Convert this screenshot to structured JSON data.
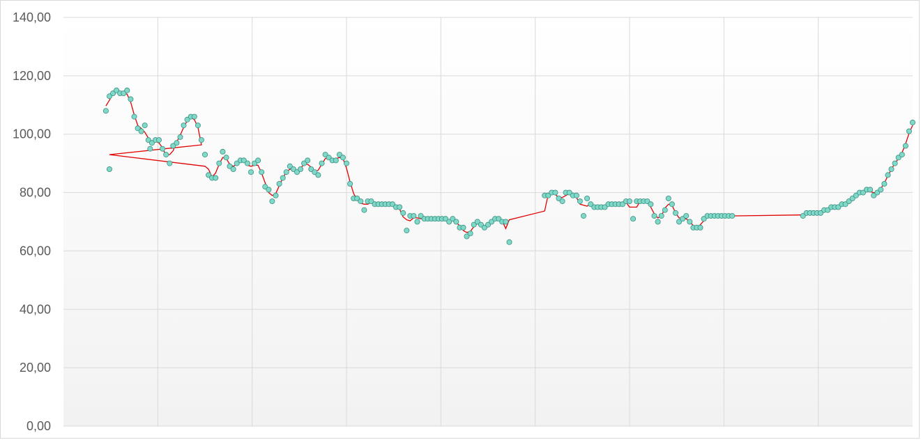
{
  "chart_data": {
    "type": "scatter",
    "title": "",
    "xlabel": "",
    "ylabel": "",
    "ylim": [
      0,
      140
    ],
    "xlim": [
      0,
      240
    ],
    "y_ticks": [
      "0,00",
      "20,00",
      "40,00",
      "60,00",
      "80,00",
      "100,00",
      "120,00",
      "140,00"
    ],
    "grid": true,
    "legend": "none",
    "colors": {
      "marker_fill": "#7fd8c8",
      "marker_stroke": "#3a8f80",
      "line": "#e00000",
      "grid": "#d9d9d9"
    },
    "series": [
      {
        "marker": "circle",
        "line": "smoothed trend",
        "points": [
          [
            12,
            108
          ],
          [
            13,
            113
          ],
          [
            14,
            114
          ],
          [
            15,
            115
          ],
          [
            16,
            114
          ],
          [
            17,
            114
          ],
          [
            18,
            115
          ],
          [
            19,
            112
          ],
          [
            20,
            106
          ],
          [
            21,
            102
          ],
          [
            22,
            101
          ],
          [
            23,
            103
          ],
          [
            24,
            98
          ],
          [
            24.5,
            95
          ],
          [
            25,
            97
          ],
          [
            26,
            98
          ],
          [
            27,
            98
          ],
          [
            28,
            95
          ],
          [
            29,
            93
          ],
          [
            30,
            90
          ],
          [
            31,
            96
          ],
          [
            32,
            97
          ],
          [
            33,
            99
          ],
          [
            34,
            103
          ],
          [
            35,
            105
          ],
          [
            36,
            106
          ],
          [
            37,
            106
          ],
          [
            38,
            103
          ],
          [
            39,
            98
          ],
          [
            13,
            88
          ],
          [
            40,
            93
          ],
          [
            41,
            86
          ],
          [
            42,
            85
          ],
          [
            43,
            85
          ],
          [
            44,
            90
          ],
          [
            45,
            94
          ],
          [
            46,
            92
          ],
          [
            47,
            89
          ],
          [
            48,
            88
          ],
          [
            49,
            90
          ],
          [
            50,
            91
          ],
          [
            51,
            91
          ],
          [
            52,
            90
          ],
          [
            53,
            87
          ],
          [
            54,
            90
          ],
          [
            55,
            91
          ],
          [
            56,
            87
          ],
          [
            57,
            82
          ],
          [
            58,
            81
          ],
          [
            59,
            77
          ],
          [
            60,
            79
          ],
          [
            61,
            83
          ],
          [
            62,
            85
          ],
          [
            63,
            87
          ],
          [
            64,
            89
          ],
          [
            65,
            88
          ],
          [
            66,
            87
          ],
          [
            67,
            88
          ],
          [
            68,
            90
          ],
          [
            69,
            91
          ],
          [
            70,
            88
          ],
          [
            71,
            87
          ],
          [
            72,
            86
          ],
          [
            73,
            90
          ],
          [
            74,
            93
          ],
          [
            75,
            92
          ],
          [
            76,
            91
          ],
          [
            77,
            91
          ],
          [
            78,
            93
          ],
          [
            79,
            92
          ],
          [
            80,
            90
          ],
          [
            81,
            83
          ],
          [
            82,
            78
          ],
          [
            83,
            78
          ],
          [
            84,
            77
          ],
          [
            85,
            74
          ],
          [
            86,
            77
          ],
          [
            87,
            77
          ],
          [
            88,
            76
          ],
          [
            89,
            76
          ],
          [
            90,
            76
          ],
          [
            91,
            76
          ],
          [
            92,
            76
          ],
          [
            93,
            76
          ],
          [
            94,
            75
          ],
          [
            95,
            75
          ],
          [
            96,
            73
          ],
          [
            97,
            67
          ],
          [
            98,
            72
          ],
          [
            99,
            72
          ],
          [
            100,
            70
          ],
          [
            101,
            72
          ],
          [
            102,
            71
          ],
          [
            103,
            71
          ],
          [
            104,
            71
          ],
          [
            105,
            71
          ],
          [
            106,
            71
          ],
          [
            107,
            71
          ],
          [
            108,
            71
          ],
          [
            109,
            70
          ],
          [
            110,
            71
          ],
          [
            111,
            70
          ],
          [
            112,
            68
          ],
          [
            113,
            68
          ],
          [
            114,
            65
          ],
          [
            115,
            66
          ],
          [
            116,
            69
          ],
          [
            117,
            70
          ],
          [
            118,
            69
          ],
          [
            119,
            68
          ],
          [
            120,
            69
          ],
          [
            121,
            70
          ],
          [
            122,
            71
          ],
          [
            123,
            71
          ],
          [
            124,
            70
          ],
          [
            125,
            70
          ],
          [
            126,
            63
          ],
          [
            136,
            79
          ],
          [
            137,
            79
          ],
          [
            138,
            80
          ],
          [
            139,
            80
          ],
          [
            140,
            78
          ],
          [
            141,
            77
          ],
          [
            142,
            80
          ],
          [
            143,
            80
          ],
          [
            144,
            79
          ],
          [
            145,
            79
          ],
          [
            146,
            77
          ],
          [
            147,
            72
          ],
          [
            148,
            78
          ],
          [
            149,
            76
          ],
          [
            150,
            75
          ],
          [
            151,
            75
          ],
          [
            152,
            75
          ],
          [
            153,
            75
          ],
          [
            154,
            76
          ],
          [
            155,
            76
          ],
          [
            156,
            76
          ],
          [
            157,
            76
          ],
          [
            158,
            76
          ],
          [
            159,
            77
          ],
          [
            160,
            77
          ],
          [
            161,
            71
          ],
          [
            162,
            77
          ],
          [
            163,
            77
          ],
          [
            164,
            77
          ],
          [
            165,
            77
          ],
          [
            166,
            76
          ],
          [
            167,
            72
          ],
          [
            168,
            70
          ],
          [
            169,
            72
          ],
          [
            170,
            74
          ],
          [
            171,
            78
          ],
          [
            172,
            76
          ],
          [
            173,
            73
          ],
          [
            174,
            70
          ],
          [
            175,
            71
          ],
          [
            176,
            72
          ],
          [
            177,
            70
          ],
          [
            178,
            68
          ],
          [
            179,
            68
          ],
          [
            180,
            68
          ],
          [
            181,
            71
          ],
          [
            182,
            72
          ],
          [
            183,
            72
          ],
          [
            184,
            72
          ],
          [
            185,
            72
          ],
          [
            186,
            72
          ],
          [
            187,
            72
          ],
          [
            188,
            72
          ],
          [
            189,
            72
          ],
          [
            209,
            72
          ],
          [
            210,
            73
          ],
          [
            211,
            73
          ],
          [
            212,
            73
          ],
          [
            213,
            73
          ],
          [
            214,
            73
          ],
          [
            215,
            74
          ],
          [
            216,
            74
          ],
          [
            217,
            75
          ],
          [
            218,
            75
          ],
          [
            219,
            75
          ],
          [
            220,
            76
          ],
          [
            221,
            76
          ],
          [
            222,
            77
          ],
          [
            223,
            78
          ],
          [
            224,
            79
          ],
          [
            225,
            80
          ],
          [
            226,
            80
          ],
          [
            227,
            81
          ],
          [
            228,
            81
          ],
          [
            229,
            79
          ],
          [
            230,
            80
          ],
          [
            231,
            81
          ],
          [
            232,
            83
          ],
          [
            233,
            86
          ],
          [
            234,
            88
          ],
          [
            235,
            90
          ],
          [
            236,
            92
          ],
          [
            237,
            93
          ],
          [
            238,
            96
          ],
          [
            239,
            101
          ],
          [
            240,
            104
          ]
        ]
      }
    ]
  }
}
